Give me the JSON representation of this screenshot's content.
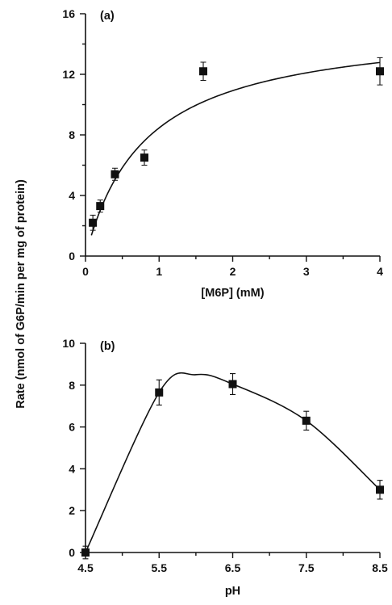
{
  "ylabel": "Rate (nmol of G6P/min per mg of protein)",
  "chart_data": [
    {
      "type": "scatter",
      "panel_label": "(a)",
      "xlabel": "[M6P] (mM)",
      "xlim": [
        0,
        4
      ],
      "ylim": [
        0,
        16
      ],
      "xticks": [
        0,
        1,
        2,
        3,
        4
      ],
      "xtick_labels": [
        "0",
        "1",
        "2",
        "3",
        "4"
      ],
      "xminor": [
        0.5,
        1.5,
        2.5,
        3.5
      ],
      "yticks": [
        0,
        4,
        8,
        12,
        16
      ],
      "ytick_labels": [
        "0",
        "4",
        "8",
        "12",
        "16"
      ],
      "yminor": [
        2,
        6,
        10,
        14
      ],
      "points": [
        {
          "x": 0.1,
          "y": 2.2,
          "err": 0.5
        },
        {
          "x": 0.2,
          "y": 3.3,
          "err": 0.4
        },
        {
          "x": 0.4,
          "y": 5.4,
          "err": 0.4
        },
        {
          "x": 0.8,
          "y": 6.5,
          "err": 0.5
        },
        {
          "x": 1.6,
          "y": 12.2,
          "err": 0.6
        },
        {
          "x": 4.0,
          "y": 12.2,
          "err": 0.9
        }
      ],
      "fit": {
        "model": "michaelis-menten",
        "vmax": 15.4,
        "km": 0.82,
        "x_start": 0.08,
        "x_end": 4.0
      },
      "grid": false,
      "legend": "none"
    },
    {
      "type": "scatter",
      "panel_label": "(b)",
      "xlabel": "pH",
      "xlim": [
        4.5,
        8.5
      ],
      "ylim": [
        0,
        10
      ],
      "xticks": [
        4.5,
        5.5,
        6.5,
        7.5,
        8.5
      ],
      "xtick_labels": [
        "4.5",
        "5.5",
        "6.5",
        "7.5",
        "8.5"
      ],
      "xminor": [
        5.0,
        6.0,
        7.0,
        8.0
      ],
      "yticks": [
        0,
        2,
        4,
        6,
        8,
        10
      ],
      "ytick_labels": [
        "0",
        "2",
        "4",
        "6",
        "8",
        "10"
      ],
      "yminor": [],
      "points": [
        {
          "x": 4.5,
          "y": 0.0,
          "err": 0.3
        },
        {
          "x": 5.5,
          "y": 7.65,
          "err": 0.6
        },
        {
          "x": 6.5,
          "y": 8.05,
          "err": 0.5
        },
        {
          "x": 7.5,
          "y": 6.3,
          "err": 0.45
        },
        {
          "x": 8.5,
          "y": 3.0,
          "err": 0.45
        }
      ],
      "fit": {
        "model": "smooth",
        "points": [
          [
            4.5,
            0.0
          ],
          [
            5.5,
            7.65
          ],
          [
            6.0,
            8.5
          ],
          [
            6.5,
            8.05
          ],
          [
            7.5,
            6.3
          ],
          [
            8.5,
            3.0
          ]
        ]
      },
      "grid": false,
      "legend": "none"
    }
  ]
}
